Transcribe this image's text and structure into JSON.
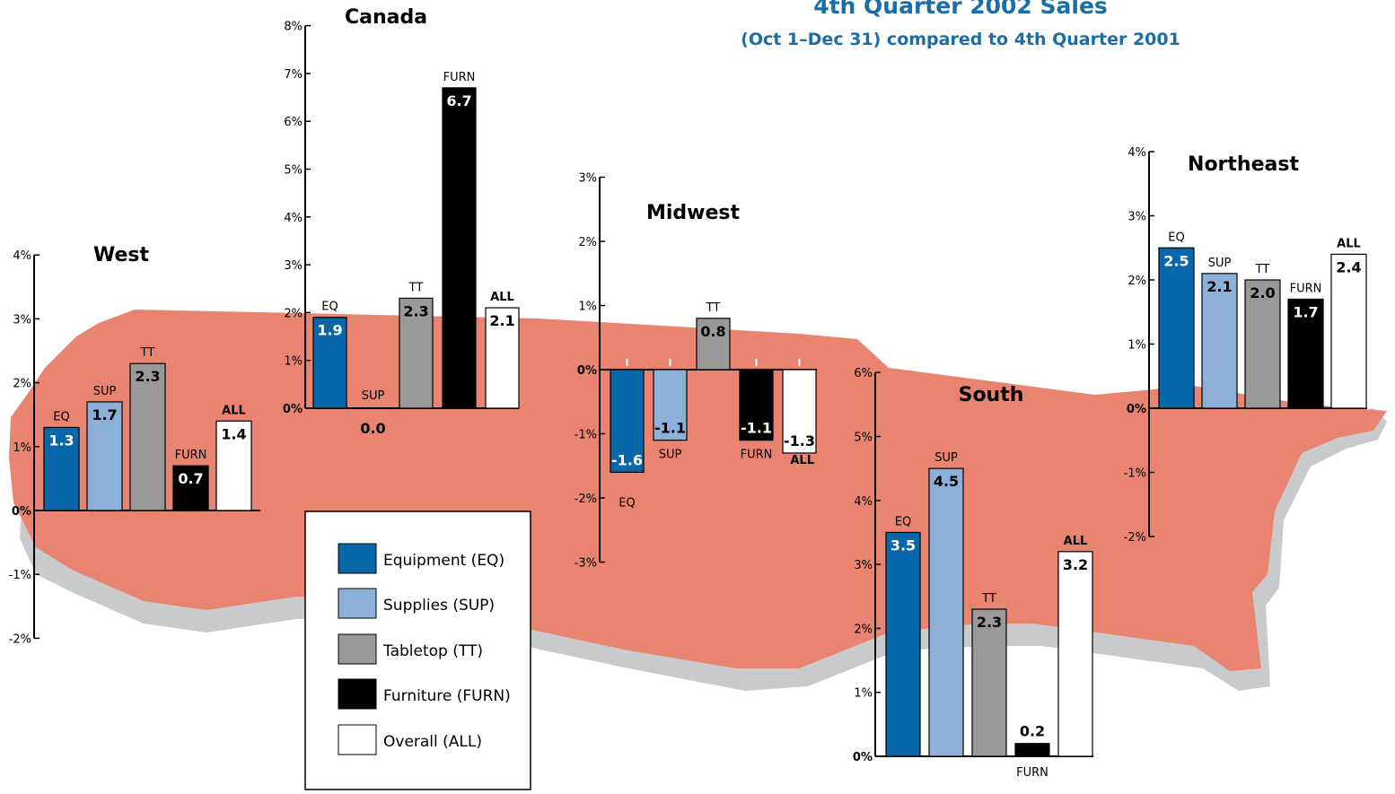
{
  "header": {
    "title": "4th Quarter 2002 Sales",
    "subtitle": "(Oct 1–Dec 31) compared to 4th Quarter 2001"
  },
  "colors": {
    "map": "#e8846f",
    "map_shadow": "#c9cacc",
    "EQ": "#0867a8",
    "SUP": "#8cb0d8",
    "TT": "#999999",
    "FURN": "#000000",
    "ALL": "#ffffff"
  },
  "legend": {
    "items": [
      {
        "key": "EQ",
        "label": "Equipment (EQ)"
      },
      {
        "key": "SUP",
        "label": "Supplies (SUP)"
      },
      {
        "key": "TT",
        "label": "Tabletop (TT)"
      },
      {
        "key": "FURN",
        "label": "Furniture (FURN)"
      },
      {
        "key": "ALL",
        "label": "Overall (ALL)"
      }
    ]
  },
  "chart_data": [
    {
      "type": "bar",
      "title": "West",
      "categories": [
        "EQ",
        "SUP",
        "TT",
        "FURN",
        "ALL"
      ],
      "values": [
        1.3,
        1.7,
        2.3,
        0.7,
        1.4
      ],
      "ylim": [
        -2,
        4
      ],
      "yticks": [
        "-2%",
        "-1%",
        "0%",
        "1%",
        "2%",
        "3%",
        "4%"
      ]
    },
    {
      "type": "bar",
      "title": "Canada",
      "categories": [
        "EQ",
        "SUP",
        "TT",
        "FURN",
        "ALL"
      ],
      "values": [
        1.9,
        0.0,
        2.3,
        6.7,
        2.1
      ],
      "ylim": [
        0,
        8
      ],
      "yticks": [
        "0%",
        "1%",
        "2%",
        "3%",
        "4%",
        "5%",
        "6%",
        "7%",
        "8%"
      ]
    },
    {
      "type": "bar",
      "title": "Midwest",
      "categories": [
        "EQ",
        "SUP",
        "TT",
        "FURN",
        "ALL"
      ],
      "values": [
        -1.6,
        -1.1,
        0.8,
        -1.1,
        -1.3
      ],
      "ylim": [
        -3,
        3
      ],
      "yticks": [
        "-3%",
        "-2%",
        "-1%",
        "0%",
        "1%",
        "2%",
        "3%"
      ]
    },
    {
      "type": "bar",
      "title": "South",
      "categories": [
        "EQ",
        "SUP",
        "TT",
        "FURN",
        "ALL"
      ],
      "values": [
        3.5,
        4.5,
        2.3,
        0.2,
        3.2
      ],
      "ylim": [
        0,
        6
      ],
      "yticks": [
        "0%",
        "1%",
        "2%",
        "3%",
        "4%",
        "5%",
        "6%"
      ]
    },
    {
      "type": "bar",
      "title": "Northeast",
      "categories": [
        "EQ",
        "SUP",
        "TT",
        "FURN",
        "ALL"
      ],
      "values": [
        2.5,
        2.1,
        2.0,
        1.7,
        2.4
      ],
      "ylim": [
        -2,
        4
      ],
      "yticks": [
        "-2%",
        "-1%",
        "0%",
        "1%",
        "2%",
        "3%",
        "4%"
      ]
    }
  ]
}
